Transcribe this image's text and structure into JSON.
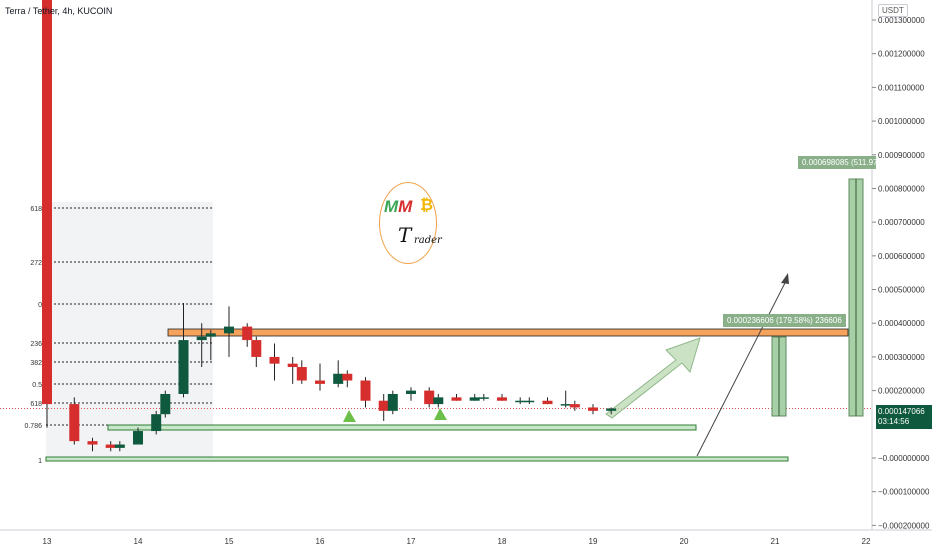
{
  "header": {
    "title": "Terra / Tether, 4h, KUCOIN",
    "currency": "USDT"
  },
  "price_axis": {
    "ticks": [
      "0.001300000",
      "0.001200000",
      "0.001100000",
      "0.001000000",
      "0.000900000",
      "0.000800000",
      "0.000700000",
      "0.000600000",
      "0.000500000",
      "0.000400000",
      "0.000300000",
      "0.000200000",
      "−0.000000000",
      "−0.000100000",
      "−0.000200000"
    ],
    "current_price": "0.000147066",
    "countdown": "03:14:56"
  },
  "time_axis": {
    "ticks": [
      "13",
      "14",
      "15",
      "16",
      "17",
      "18",
      "19",
      "20",
      "21",
      "22"
    ]
  },
  "fib_labels": [
    "618",
    "272",
    "0",
    "236",
    "382",
    "0.5",
    "618",
    "0.786",
    "1"
  ],
  "measure_labels": {
    "big": "0.000698085 (511.97%) 698085",
    "small": "0.000236606 (179.58%) 236606"
  },
  "logo": {
    "mm": "MM",
    "b": "₿",
    "t": "T",
    "rader": "rader"
  },
  "colors": {
    "up": "#0f5a3e",
    "down": "#d62d2d",
    "zone": "#f5a25d",
    "support": "#2f7d32",
    "measure": "#8ab08a"
  },
  "chart_data": {
    "type": "candlestick",
    "title": "Terra / Tether, 4h, KUCOIN",
    "xlabel": "",
    "ylabel": "USDT",
    "ylim": [
      -0.0002,
      0.0013
    ],
    "x_ticks": [
      "13",
      "14",
      "15",
      "16",
      "17",
      "18",
      "19",
      "20",
      "21",
      "22"
    ],
    "candles": [
      {
        "t": "13.0",
        "o": 0.0022,
        "h": 0.0024,
        "l": 9e-05,
        "c": 0.00016
      },
      {
        "t": "13.3",
        "o": 0.00016,
        "h": 0.00018,
        "l": 4e-05,
        "c": 5e-05
      },
      {
        "t": "13.5",
        "o": 5e-05,
        "h": 6e-05,
        "l": 2e-05,
        "c": 4e-05
      },
      {
        "t": "13.7",
        "o": 4e-05,
        "h": 5e-05,
        "l": 2e-05,
        "c": 3e-05
      },
      {
        "t": "13.8",
        "o": 3e-05,
        "h": 5e-05,
        "l": 2e-05,
        "c": 4e-05
      },
      {
        "t": "14.0",
        "o": 4e-05,
        "h": 9e-05,
        "l": 4e-05,
        "c": 8e-05
      },
      {
        "t": "14.2",
        "o": 8e-05,
        "h": 0.00014,
        "l": 7e-05,
        "c": 0.00013
      },
      {
        "t": "14.3",
        "o": 0.00013,
        "h": 0.0002,
        "l": 0.00012,
        "c": 0.00019
      },
      {
        "t": "14.5",
        "o": 0.00019,
        "h": 0.00046,
        "l": 0.00018,
        "c": 0.00035
      },
      {
        "t": "14.7",
        "o": 0.00035,
        "h": 0.0004,
        "l": 0.00027,
        "c": 0.00036
      },
      {
        "t": "14.8",
        "o": 0.00036,
        "h": 0.00038,
        "l": 0.00029,
        "c": 0.00037
      },
      {
        "t": "15.0",
        "o": 0.00037,
        "h": 0.00045,
        "l": 0.0003,
        "c": 0.00039
      },
      {
        "t": "15.2",
        "o": 0.00039,
        "h": 0.0004,
        "l": 0.00033,
        "c": 0.00035
      },
      {
        "t": "15.3",
        "o": 0.00035,
        "h": 0.00036,
        "l": 0.00027,
        "c": 0.0003
      },
      {
        "t": "15.5",
        "o": 0.0003,
        "h": 0.00034,
        "l": 0.00023,
        "c": 0.00028
      },
      {
        "t": "15.7",
        "o": 0.00028,
        "h": 0.0003,
        "l": 0.00022,
        "c": 0.00027
      },
      {
        "t": "15.8",
        "o": 0.00027,
        "h": 0.00029,
        "l": 0.00022,
        "c": 0.00023
      },
      {
        "t": "16.0",
        "o": 0.00023,
        "h": 0.00028,
        "l": 0.0002,
        "c": 0.00022
      },
      {
        "t": "16.2",
        "o": 0.00022,
        "h": 0.00029,
        "l": 0.00021,
        "c": 0.00025
      },
      {
        "t": "16.3",
        "o": 0.00025,
        "h": 0.00026,
        "l": 0.00021,
        "c": 0.00023
      },
      {
        "t": "16.5",
        "o": 0.00023,
        "h": 0.00024,
        "l": 0.00015,
        "c": 0.00017
      },
      {
        "t": "16.7",
        "o": 0.00017,
        "h": 0.00019,
        "l": 0.00011,
        "c": 0.00014
      },
      {
        "t": "16.8",
        "o": 0.00014,
        "h": 0.0002,
        "l": 0.00013,
        "c": 0.00019
      },
      {
        "t": "17.0",
        "o": 0.00019,
        "h": 0.00021,
        "l": 0.00017,
        "c": 0.0002
      },
      {
        "t": "17.2",
        "o": 0.0002,
        "h": 0.00021,
        "l": 0.00015,
        "c": 0.00016
      },
      {
        "t": "17.3",
        "o": 0.00016,
        "h": 0.00019,
        "l": 0.00015,
        "c": 0.00018
      },
      {
        "t": "17.5",
        "o": 0.00018,
        "h": 0.00019,
        "l": 0.00017,
        "c": 0.00017
      },
      {
        "t": "17.7",
        "o": 0.00017,
        "h": 0.00019,
        "l": 0.00017,
        "c": 0.00018
      },
      {
        "t": "17.8",
        "o": 0.00018,
        "h": 0.00019,
        "l": 0.00017,
        "c": 0.00018
      },
      {
        "t": "18.0",
        "o": 0.00018,
        "h": 0.00019,
        "l": 0.00017,
        "c": 0.00017
      },
      {
        "t": "18.2",
        "o": 0.00017,
        "h": 0.00018,
        "l": 0.00016,
        "c": 0.00017
      },
      {
        "t": "18.3",
        "o": 0.00017,
        "h": 0.00018,
        "l": 0.00016,
        "c": 0.00017
      },
      {
        "t": "18.5",
        "o": 0.00017,
        "h": 0.00018,
        "l": 0.00016,
        "c": 0.00016
      },
      {
        "t": "18.7",
        "o": 0.00016,
        "h": 0.0002,
        "l": 0.00015,
        "c": 0.00016
      },
      {
        "t": "18.8",
        "o": 0.00016,
        "h": 0.00017,
        "l": 0.00014,
        "c": 0.00015
      },
      {
        "t": "19.0",
        "o": 0.00015,
        "h": 0.00016,
        "l": 0.00013,
        "c": 0.00014
      },
      {
        "t": "19.2",
        "o": 0.00014,
        "h": 0.00015,
        "l": 0.00013,
        "c": 0.000147
      }
    ],
    "zones": [
      {
        "name": "resistance",
        "from": 0.000368,
        "to": 0.000383,
        "color": "#f5a25d"
      },
      {
        "name": "support-1",
        "from": 8.4e-05,
        "to": 9.3e-05,
        "color": "#2f7d32"
      },
      {
        "name": "support-2",
        "from": 3e-06,
        "to": 8e-06,
        "color": "#2f7d32"
      }
    ],
    "current_price": 0.000147066
  }
}
